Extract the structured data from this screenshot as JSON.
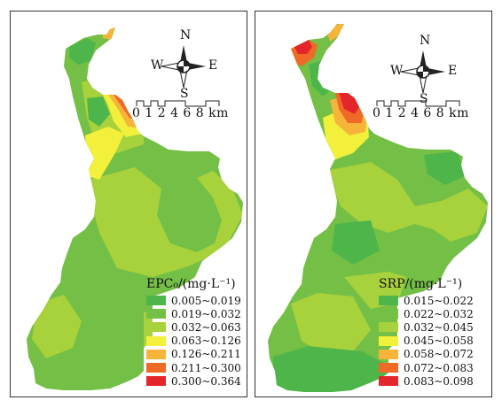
{
  "colors": {
    "c1": "#4db54a",
    "c2": "#74bf45",
    "c3": "#a8d23c",
    "c4": "#f2f03a",
    "c5": "#f6b53a",
    "c6": "#ee6a26",
    "c7": "#e4262c"
  },
  "compass": {
    "n": "N",
    "s": "S",
    "e": "E",
    "w": "W"
  },
  "scale": {
    "label": "0 1 2  4  6  8 km"
  },
  "left": {
    "legend_title": "EPC₀/(mg·L⁻¹)",
    "legend": [
      {
        "label": "0.005~0.019",
        "color_key": "c1"
      },
      {
        "label": "0.019~0.032",
        "color_key": "c2"
      },
      {
        "label": "0.032~0.063",
        "color_key": "c3"
      },
      {
        "label": "0.063~0.126",
        "color_key": "c4"
      },
      {
        "label": "0.126~0.211",
        "color_key": "c5"
      },
      {
        "label": "0.211~0.300",
        "color_key": "c6"
      },
      {
        "label": "0.300~0.364",
        "color_key": "c7"
      }
    ]
  },
  "right": {
    "legend_title": "SRP/(mg·L⁻¹)",
    "legend": [
      {
        "label": "0.015~0.022",
        "color_key": "c1"
      },
      {
        "label": "0.022~0.032",
        "color_key": "c2"
      },
      {
        "label": "0.032~0.045",
        "color_key": "c3"
      },
      {
        "label": "0.045~0.058",
        "color_key": "c4"
      },
      {
        "label": "0.058~0.072",
        "color_key": "c5"
      },
      {
        "label": "0.072~0.083",
        "color_key": "c6"
      },
      {
        "label": "0.083~0.098",
        "color_key": "c7"
      }
    ]
  }
}
